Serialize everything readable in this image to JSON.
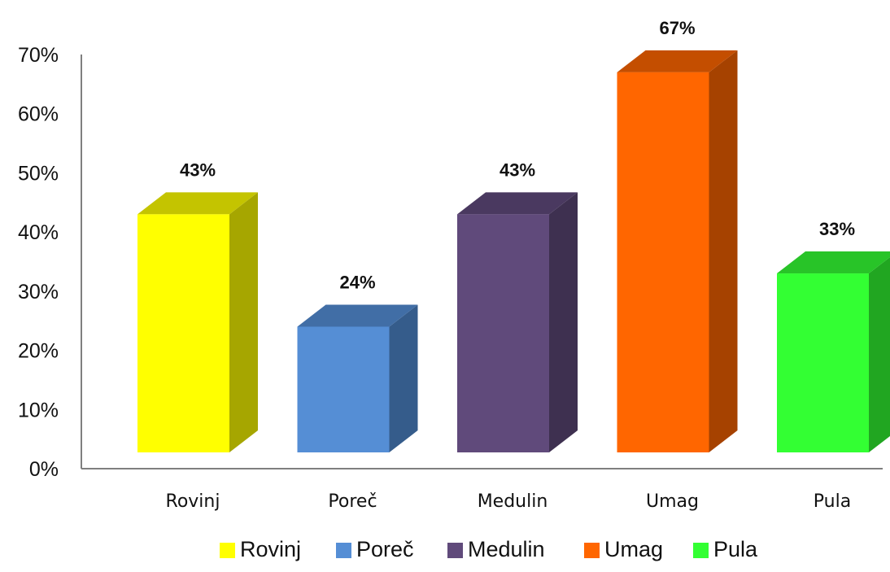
{
  "chart_data": {
    "type": "bar",
    "style": "3d-column",
    "categories": [
      "Rovinj",
      "Poreč",
      "Medulin",
      "Umag",
      "Pula"
    ],
    "values": [
      43,
      24,
      43,
      67,
      33
    ],
    "data_labels": [
      "43%",
      "24%",
      "43%",
      "67%",
      "33%"
    ],
    "colors": [
      "#ffff00",
      "#558ed5",
      "#604a7b",
      "#ff6600",
      "#33ff33"
    ],
    "side_colors": [
      "#a6a600",
      "#355c8b",
      "#3e3050",
      "#a64200",
      "#21a621"
    ],
    "top_colors": [
      "#c4c400",
      "#416ea6",
      "#4a3960",
      "#c44e00",
      "#28c428"
    ],
    "ylim": [
      0,
      70
    ],
    "yticks": [
      0,
      10,
      20,
      30,
      40,
      50,
      60,
      70
    ],
    "ytick_labels": [
      "0%",
      "10%",
      "20%",
      "30%",
      "40%",
      "50%",
      "60%",
      "70%"
    ],
    "title": "",
    "xlabel": "",
    "ylabel": "",
    "grid": false,
    "legend": {
      "position": "bottom",
      "entries": [
        "Rovinj",
        "Poreč",
        "Medulin",
        "Umag",
        "Pula"
      ]
    }
  }
}
